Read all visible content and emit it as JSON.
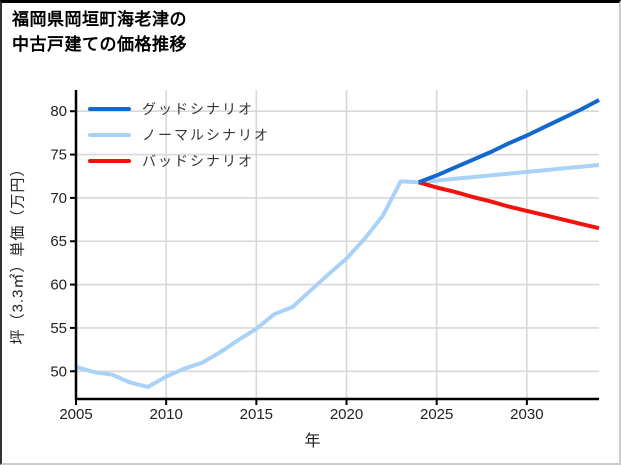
{
  "title": {
    "line1": "福岡県岡垣町海老津の",
    "line2": "中古戸建ての価格推移"
  },
  "legend": {
    "items": [
      {
        "label": "グッドシナリオ",
        "color": "#1268cc"
      },
      {
        "label": "ノーマルシナリオ",
        "color": "#a9d2f6"
      },
      {
        "label": "バッドシナリオ",
        "color": "#f2120c"
      }
    ]
  },
  "axes": {
    "xlabel": "年",
    "ylabel": "坪（3.3㎡）単価（万円）"
  },
  "colors": {
    "grid": "#d8d8d8",
    "axis": "#000000",
    "tick_text": "#222222"
  },
  "chart_data": {
    "type": "line",
    "title": "福岡県岡垣町海老津の中古戸建ての価格推移",
    "xlabel": "年",
    "ylabel": "坪（3.3㎡）単価（万円）",
    "xlim": [
      2005,
      2034
    ],
    "ylim": [
      46.8,
      82.45
    ],
    "x_ticks": [
      2005,
      2010,
      2015,
      2020,
      2025,
      2030
    ],
    "y_ticks": [
      50,
      55,
      60,
      65,
      70,
      75,
      80
    ],
    "grid": true,
    "legend_position": "upper left",
    "series": [
      {
        "name": "ノーマルシナリオ",
        "color": "#a9d2f6",
        "x": [
          2005,
          2006,
          2007,
          2008,
          2009,
          2010,
          2011,
          2012,
          2013,
          2014,
          2015,
          2016,
          2017,
          2018,
          2019,
          2020,
          2021,
          2022,
          2023,
          2024,
          2025,
          2026,
          2027,
          2028,
          2029,
          2030,
          2031,
          2032,
          2033,
          2034
        ],
        "values": [
          50.5,
          49.9,
          49.6,
          48.7,
          48.2,
          49.4,
          50.3,
          51.0,
          52.2,
          53.6,
          54.9,
          56.6,
          57.4,
          59.3,
          61.2,
          63.0,
          65.3,
          67.9,
          71.9,
          71.8,
          72.0,
          72.2,
          72.4,
          72.6,
          72.8,
          73.0,
          73.2,
          73.4,
          73.6,
          73.8
        ]
      },
      {
        "name": "バッドシナリオ",
        "color": "#f2120c",
        "x": [
          2024,
          2025,
          2026,
          2027,
          2028,
          2029,
          2030,
          2031,
          2032,
          2033,
          2034
        ],
        "values": [
          71.8,
          71.2,
          70.7,
          70.1,
          69.6,
          69.0,
          68.5,
          68.0,
          67.5,
          67.0,
          66.5
        ]
      },
      {
        "name": "グッドシナリオ",
        "color": "#1268cc",
        "x": [
          2024,
          2025,
          2026,
          2027,
          2028,
          2029,
          2030,
          2031,
          2032,
          2033,
          2034
        ],
        "values": [
          71.8,
          72.6,
          73.5,
          74.4,
          75.3,
          76.3,
          77.2,
          78.2,
          79.2,
          80.2,
          81.3
        ]
      }
    ]
  }
}
